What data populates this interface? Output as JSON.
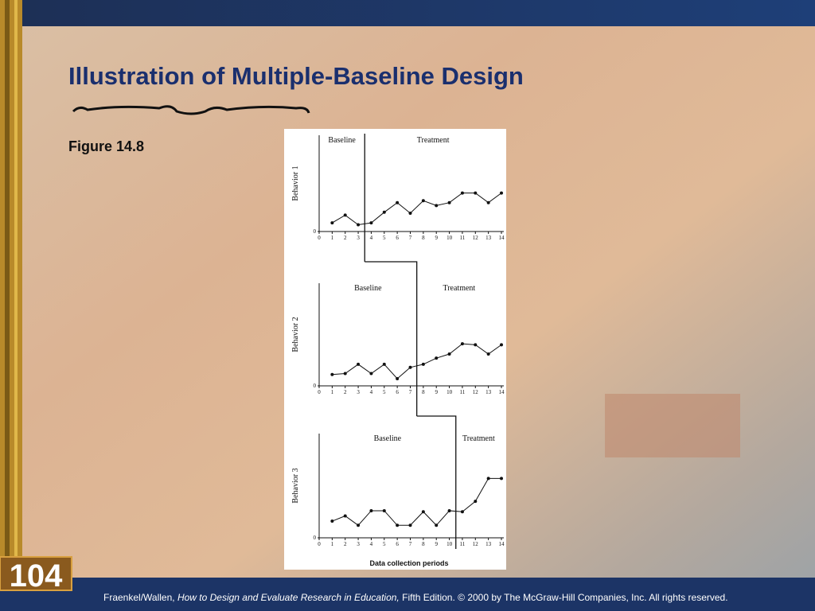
{
  "slide": {
    "title": "Illustration of Multiple-Baseline Design",
    "figure_label": "Figure 14.8",
    "page_number": "104",
    "x_axis_label": "Data collection periods",
    "footer": {
      "authors": "Fraenkel/Wallen, ",
      "book": "How to Design and Evaluate Research in Education,",
      "rest": " Fifth Edition. © 2000 by The McGraw-Hill Companies, Inc. All rights reserved."
    }
  },
  "chart_data": [
    {
      "type": "line",
      "ylabel": "Behavior 1",
      "annotations": [
        "Baseline",
        "Treatment"
      ],
      "phase_change_x": 3.5,
      "x": [
        1,
        2,
        3,
        4,
        5,
        6,
        7,
        8,
        9,
        10,
        11,
        12,
        13,
        14
      ],
      "series": [
        {
          "color": "#111111",
          "values": [
            0.9,
            1.7,
            0.7,
            0.9,
            2.0,
            3.0,
            1.9,
            3.2,
            2.7,
            3.0,
            4.0,
            4.0,
            3.0,
            4.0
          ]
        }
      ],
      "xlim": [
        0,
        14
      ],
      "xticks": [
        0,
        1,
        2,
        3,
        4,
        5,
        6,
        7,
        8,
        9,
        10,
        11,
        12,
        13,
        14
      ],
      "ylim": [
        0,
        10
      ],
      "yticks": [
        0
      ]
    },
    {
      "type": "line",
      "ylabel": "Behavior 2",
      "annotations": [
        "Baseline",
        "Treatment"
      ],
      "phase_change_x": 7.5,
      "x": [
        1,
        2,
        3,
        4,
        5,
        6,
        7,
        8,
        9,
        10,
        11,
        12,
        13,
        14
      ],
      "series": [
        {
          "color": "#111111",
          "values": [
            1.1,
            1.2,
            2.1,
            1.2,
            2.1,
            0.7,
            1.8,
            2.1,
            2.7,
            3.1,
            4.1,
            4.0,
            3.1,
            4.0
          ]
        }
      ],
      "xlim": [
        0,
        14
      ],
      "xticks": [
        0,
        1,
        2,
        3,
        4,
        5,
        6,
        7,
        8,
        9,
        10,
        11,
        12,
        13,
        14
      ],
      "ylim": [
        0,
        10
      ],
      "yticks": [
        0
      ]
    },
    {
      "type": "line",
      "ylabel": "Behavior 3",
      "annotations": [
        "Baseline",
        "Treatment"
      ],
      "phase_change_x": 10.5,
      "x": [
        1,
        2,
        3,
        4,
        5,
        6,
        7,
        8,
        9,
        10,
        11,
        12,
        13,
        14
      ],
      "series": [
        {
          "color": "#111111",
          "values": [
            1.6,
            2.1,
            1.2,
            2.6,
            2.6,
            1.2,
            1.2,
            2.5,
            1.2,
            2.6,
            2.5,
            3.5,
            5.7,
            5.7
          ]
        }
      ],
      "xlim": [
        0,
        14
      ],
      "xticks": [
        0,
        1,
        2,
        3,
        4,
        5,
        6,
        7,
        8,
        9,
        10,
        11,
        12,
        13,
        14
      ],
      "ylim": [
        0,
        10
      ],
      "yticks": [
        0
      ]
    }
  ]
}
